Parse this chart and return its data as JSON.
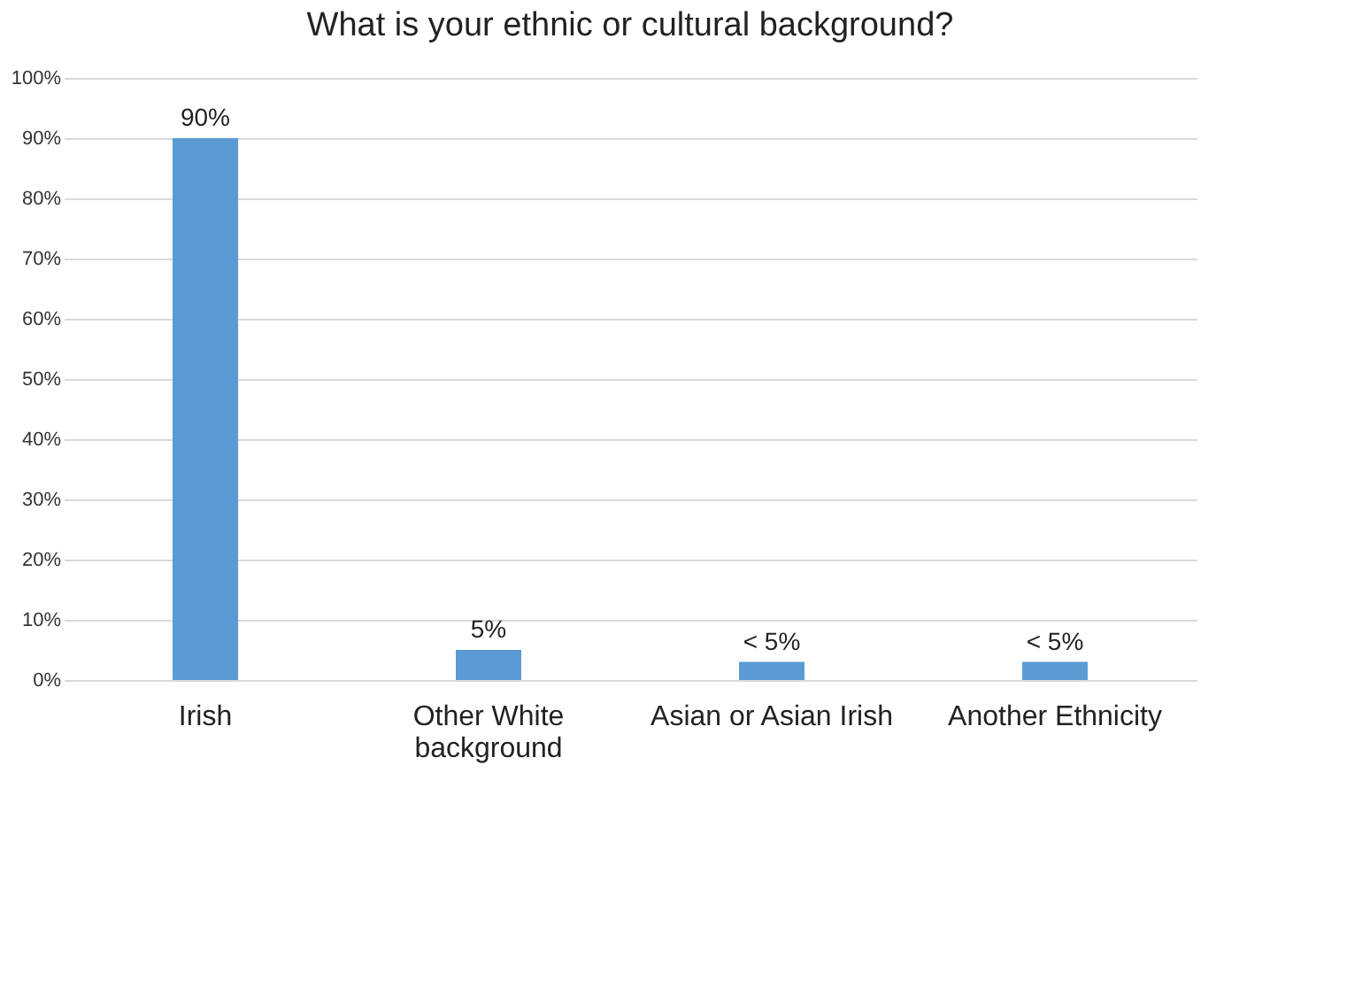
{
  "chart_data": {
    "type": "bar",
    "title": "What is your ethnic or cultural background?",
    "categories": [
      "Irish",
      "Other White background",
      "Asian or Asian Irish",
      "Another Ethnicity"
    ],
    "values": [
      90,
      5,
      3,
      3
    ],
    "color": "#5b9bd5",
    "value_labels": [
      "90%",
      "5%",
      "< 5%",
      "< 5%"
    ],
    "ylim": [
      0,
      100
    ],
    "yticks": [
      {
        "value": 0,
        "label": "0%"
      },
      {
        "value": 10,
        "label": "10%"
      },
      {
        "value": 20,
        "label": "20%"
      },
      {
        "value": 30,
        "label": "30%"
      },
      {
        "value": 40,
        "label": "40%"
      },
      {
        "value": 50,
        "label": "50%"
      },
      {
        "value": 60,
        "label": "60%"
      },
      {
        "value": 70,
        "label": "70%"
      },
      {
        "value": 80,
        "label": "80%"
      },
      {
        "value": 90,
        "label": "90%"
      },
      {
        "value": 100,
        "label": "100%"
      }
    ],
    "grid": "y"
  }
}
